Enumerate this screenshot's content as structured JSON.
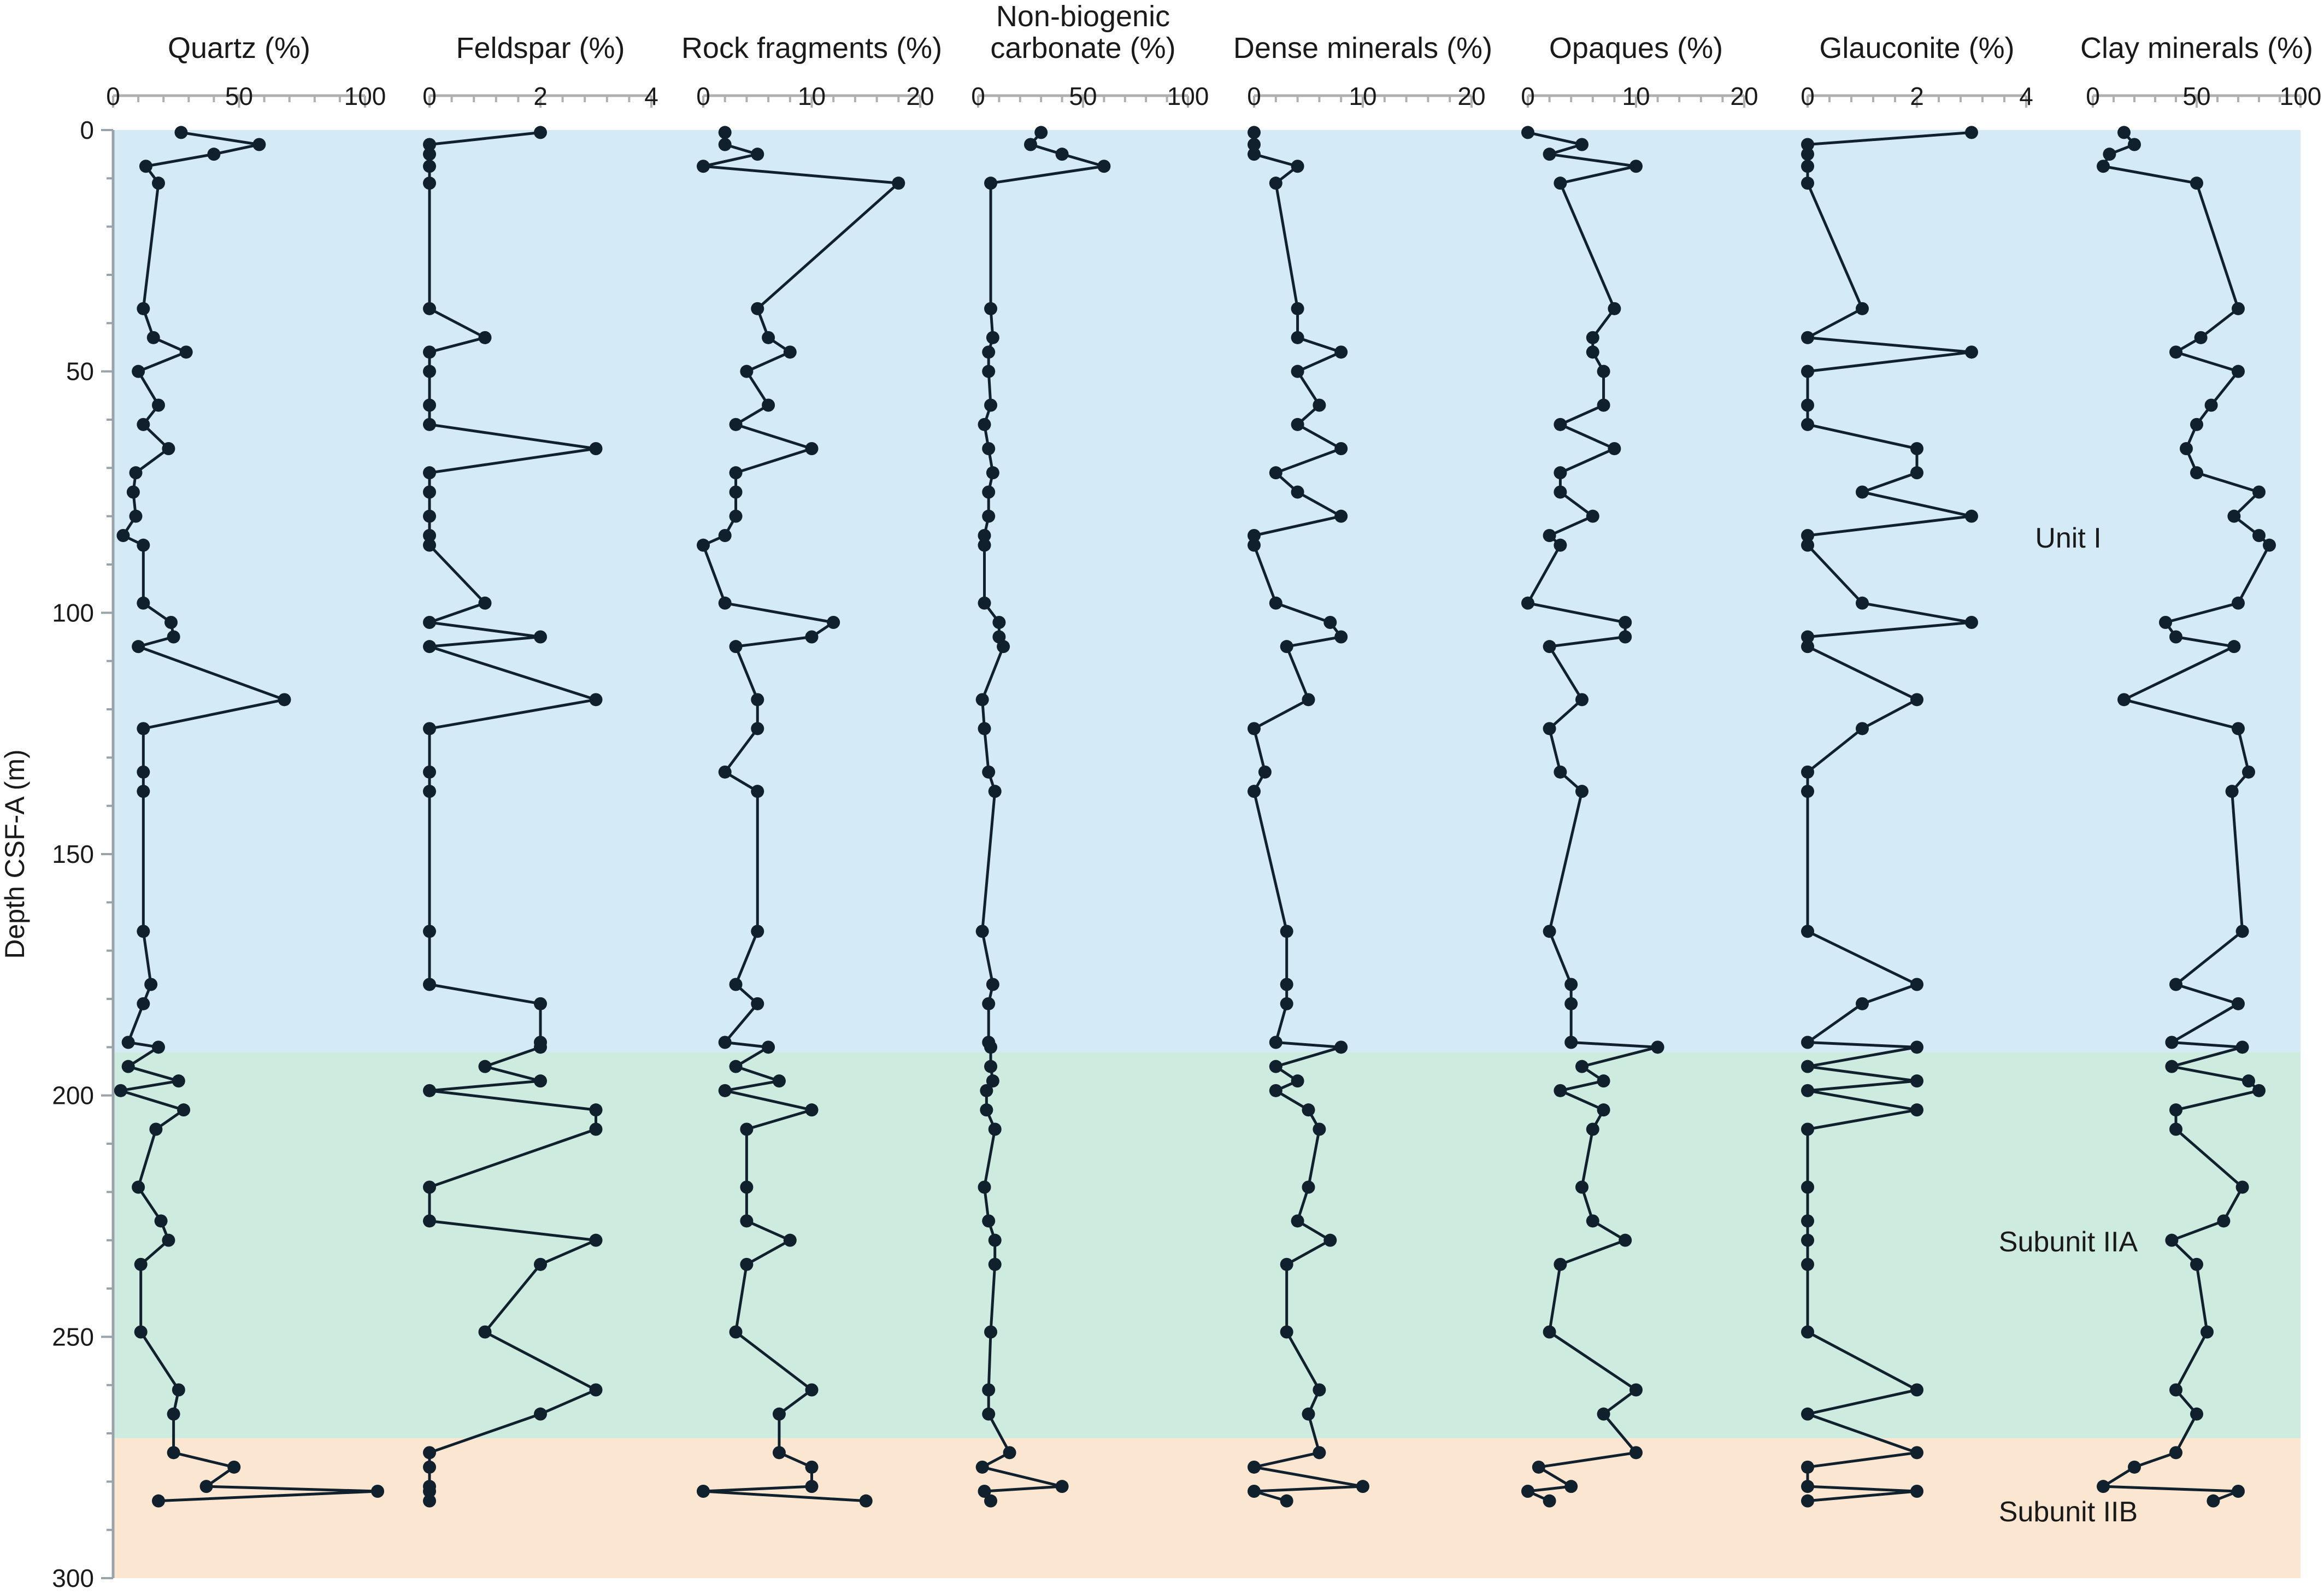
{
  "chart_data": {
    "type": "line",
    "ylabel": "Depth CSF-A (m)",
    "ylim": [
      0,
      300
    ],
    "y_ticks": [
      "0",
      "50",
      "100",
      "150",
      "200",
      "250",
      "300"
    ],
    "y_reversed": true,
    "units": [
      {
        "label": "Unit I",
        "top": 0,
        "bottom": 191,
        "color": "#d4eaf6"
      },
      {
        "label": "Subunit IIA",
        "top": 191,
        "bottom": 271,
        "color": "#cdebdf"
      },
      {
        "label": "Subunit IIB",
        "top": 271,
        "bottom": 300,
        "color": "#fbe7d1"
      }
    ],
    "panels": [
      {
        "title": "Quartz (%)",
        "xlim": [
          0,
          100
        ],
        "x_ticks": [
          "0",
          "50",
          "100"
        ],
        "depth": [
          0.5,
          3,
          5,
          7.5,
          11,
          37,
          43,
          46,
          50,
          57,
          61,
          66,
          71,
          75,
          80,
          84,
          86,
          98,
          102,
          105,
          107,
          118,
          124,
          133,
          137,
          166,
          177,
          181,
          189,
          190,
          194,
          197,
          199,
          203,
          207,
          219,
          226,
          230,
          235,
          249,
          261,
          266,
          274,
          277,
          281,
          282,
          284
        ],
        "values": [
          27,
          58,
          40,
          13,
          18,
          12,
          16,
          29,
          10,
          18,
          12,
          22,
          9,
          8,
          9,
          4,
          12,
          12,
          23,
          24,
          10,
          68,
          12,
          12,
          12,
          12,
          15,
          12,
          6,
          18,
          6,
          26,
          3,
          28,
          17,
          10,
          19,
          22,
          11,
          11,
          26,
          24,
          24,
          48,
          37,
          105,
          18
        ]
      },
      {
        "title": "Feldspar (%)",
        "xlim": [
          0,
          4
        ],
        "x_ticks": [
          "0",
          "2",
          "4"
        ],
        "depth": [
          0.5,
          3,
          5,
          7.5,
          11,
          37,
          43,
          46,
          50,
          57,
          61,
          66,
          71,
          75,
          80,
          84,
          86,
          98,
          102,
          105,
          107,
          118,
          124,
          133,
          137,
          166,
          177,
          181,
          189,
          190,
          194,
          197,
          199,
          203,
          207,
          219,
          226,
          230,
          235,
          249,
          261,
          266,
          274,
          277,
          281,
          282,
          284
        ],
        "values": [
          2,
          0,
          0,
          0,
          0,
          0,
          1,
          0,
          0,
          0,
          0,
          3,
          0,
          0,
          0,
          0,
          0,
          1,
          0,
          2,
          0,
          3,
          0,
          0,
          0,
          0,
          0,
          2,
          2,
          2,
          1,
          2,
          0,
          3,
          3,
          0,
          0,
          3,
          2,
          1,
          3,
          2,
          0,
          0,
          0,
          0,
          0
        ]
      },
      {
        "title": "Rock fragments (%)",
        "xlim": [
          0,
          20
        ],
        "x_ticks": [
          "0",
          "10",
          "20"
        ],
        "depth": [
          0.5,
          3,
          5,
          7.5,
          11,
          37,
          43,
          46,
          50,
          57,
          61,
          66,
          71,
          75,
          80,
          84,
          86,
          98,
          102,
          105,
          107,
          118,
          124,
          133,
          137,
          166,
          177,
          181,
          189,
          190,
          194,
          197,
          199,
          203,
          207,
          219,
          226,
          230,
          235,
          249,
          261,
          266,
          274,
          277,
          281,
          282,
          284
        ],
        "values": [
          2,
          2,
          5,
          0,
          18,
          5,
          6,
          8,
          4,
          6,
          3,
          10,
          3,
          3,
          3,
          2,
          0,
          2,
          12,
          10,
          3,
          5,
          5,
          2,
          5,
          5,
          3,
          5,
          2,
          6,
          3,
          7,
          2,
          10,
          4,
          4,
          4,
          8,
          4,
          3,
          10,
          7,
          7,
          10,
          10,
          0,
          15
        ]
      },
      {
        "title": "Non-biogenic carbonate (%)",
        "title_lines": [
          "Non-biogenic",
          "carbonate (%)"
        ],
        "xlim": [
          0,
          100
        ],
        "x_ticks": [
          "0",
          "50",
          "100"
        ],
        "depth": [
          0.5,
          3,
          5,
          7.5,
          11,
          37,
          43,
          46,
          50,
          57,
          61,
          66,
          71,
          75,
          80,
          84,
          86,
          98,
          102,
          105,
          107,
          118,
          124,
          133,
          137,
          166,
          177,
          181,
          189,
          190,
          194,
          197,
          199,
          203,
          207,
          219,
          226,
          230,
          235,
          249,
          261,
          266,
          274,
          277,
          281,
          282,
          284
        ],
        "values": [
          30,
          25,
          40,
          60,
          6,
          6,
          7,
          5,
          5,
          6,
          3,
          5,
          7,
          5,
          5,
          3,
          3,
          3,
          10,
          10,
          12,
          2,
          3,
          5,
          8,
          2,
          7,
          5,
          5,
          6,
          6,
          7,
          4,
          4,
          8,
          3,
          5,
          8,
          8,
          6,
          5,
          5,
          15,
          2,
          40,
          3,
          6
        ]
      },
      {
        "title": "Dense minerals (%)",
        "xlim": [
          0,
          20
        ],
        "x_ticks": [
          "0",
          "10",
          "20"
        ],
        "depth": [
          0.5,
          3,
          5,
          7.5,
          11,
          37,
          43,
          46,
          50,
          57,
          61,
          66,
          71,
          75,
          80,
          84,
          86,
          98,
          102,
          105,
          107,
          118,
          124,
          133,
          137,
          166,
          177,
          181,
          189,
          190,
          194,
          197,
          199,
          203,
          207,
          219,
          226,
          230,
          235,
          249,
          261,
          266,
          274,
          277,
          281,
          282,
          284
        ],
        "values": [
          0,
          0,
          0,
          4,
          2,
          4,
          4,
          8,
          4,
          6,
          4,
          8,
          2,
          4,
          8,
          0,
          0,
          2,
          7,
          8,
          3,
          5,
          0,
          1,
          0,
          3,
          3,
          3,
          2,
          8,
          2,
          4,
          2,
          5,
          6,
          5,
          4,
          7,
          3,
          3,
          6,
          5,
          6,
          0,
          10,
          0,
          3
        ]
      },
      {
        "title": "Opaques (%)",
        "xlim": [
          0,
          20
        ],
        "x_ticks": [
          "0",
          "10",
          "20"
        ],
        "depth": [
          0.5,
          3,
          5,
          7.5,
          11,
          37,
          43,
          46,
          50,
          57,
          61,
          66,
          71,
          75,
          80,
          84,
          86,
          98,
          102,
          105,
          107,
          118,
          124,
          133,
          137,
          166,
          177,
          181,
          189,
          190,
          194,
          197,
          199,
          203,
          207,
          219,
          226,
          230,
          235,
          249,
          261,
          266,
          274,
          277,
          281,
          282,
          284
        ],
        "values": [
          0,
          5,
          2,
          10,
          3,
          8,
          6,
          6,
          7,
          7,
          3,
          8,
          3,
          3,
          6,
          2,
          3,
          0,
          9,
          9,
          2,
          5,
          2,
          3,
          5,
          2,
          4,
          4,
          4,
          12,
          5,
          7,
          3,
          7,
          6,
          5,
          6,
          9,
          3,
          2,
          10,
          7,
          10,
          1,
          4,
          0,
          2
        ]
      },
      {
        "title": "Glauconite (%)",
        "xlim": [
          0,
          4
        ],
        "x_ticks": [
          "0",
          "2",
          "4"
        ],
        "depth": [
          0.5,
          3,
          5,
          7.5,
          11,
          37,
          43,
          46,
          50,
          57,
          61,
          66,
          71,
          75,
          80,
          84,
          86,
          98,
          102,
          105,
          107,
          118,
          124,
          133,
          137,
          166,
          177,
          181,
          189,
          190,
          194,
          197,
          199,
          203,
          207,
          219,
          226,
          230,
          235,
          249,
          261,
          266,
          274,
          277,
          281,
          282,
          284
        ],
        "values": [
          3,
          0,
          0,
          0,
          0,
          1,
          0,
          3,
          0,
          0,
          0,
          2,
          2,
          1,
          3,
          0,
          0,
          1,
          3,
          0,
          0,
          2,
          1,
          0,
          0,
          0,
          2,
          1,
          0,
          2,
          0,
          2,
          0,
          2,
          0,
          0,
          0,
          0,
          0,
          0,
          2,
          0,
          2,
          0,
          0,
          2,
          0
        ]
      },
      {
        "title": "Clay minerals (%)",
        "xlim": [
          0,
          100
        ],
        "x_ticks": [
          "0",
          "50",
          "100"
        ],
        "depth": [
          0.5,
          3,
          5,
          7.5,
          11,
          37,
          43,
          46,
          50,
          57,
          61,
          66,
          71,
          75,
          80,
          84,
          86,
          98,
          102,
          105,
          107,
          118,
          124,
          133,
          137,
          166,
          177,
          181,
          189,
          190,
          194,
          197,
          199,
          203,
          207,
          219,
          226,
          230,
          235,
          249,
          261,
          266,
          274,
          277,
          281,
          282,
          284
        ],
        "values": [
          15,
          20,
          8,
          5,
          50,
          70,
          52,
          40,
          70,
          57,
          50,
          45,
          50,
          80,
          68,
          80,
          85,
          70,
          35,
          40,
          68,
          15,
          70,
          75,
          67,
          72,
          40,
          70,
          38,
          72,
          38,
          75,
          80,
          40,
          40,
          72,
          63,
          38,
          50,
          55,
          40,
          50,
          40,
          20,
          5,
          70,
          58
        ]
      }
    ]
  }
}
